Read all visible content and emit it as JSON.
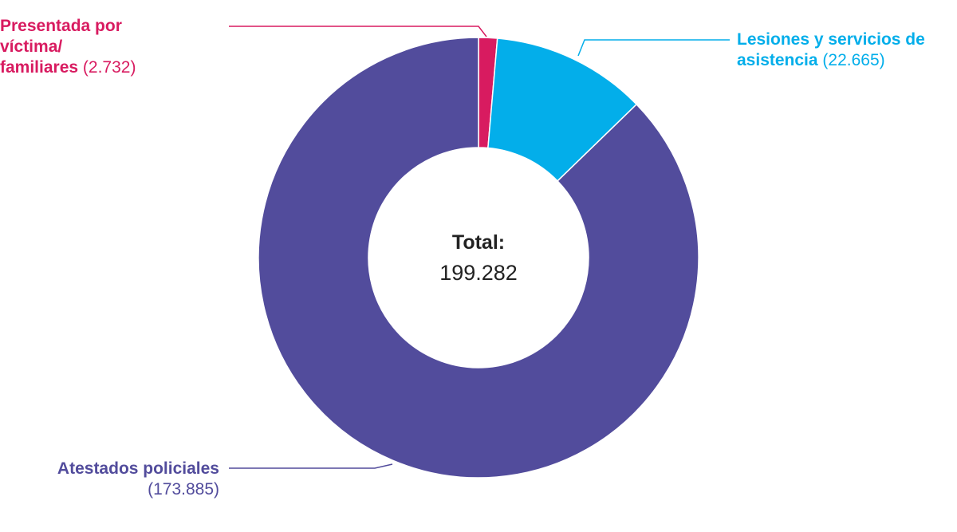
{
  "colors": {
    "victima": "#d81b60",
    "lesiones": "#03aeea",
    "atestados": "#524c9c",
    "text_dark": "#222222"
  },
  "chart_data": {
    "type": "pie",
    "donut": true,
    "title": "",
    "center": {
      "label": "Total:",
      "value": "199.282"
    },
    "slices": [
      {
        "id": "victima",
        "name": "Presentada por víctima/ familiares",
        "name_lines": [
          "Presentada por",
          "víctima/",
          "familiares"
        ],
        "value": 2732,
        "value_label": "(2.732)",
        "color": "#d81b60"
      },
      {
        "id": "lesiones",
        "name": "Lesiones y servicios de asistencia",
        "name_lines": [
          "Lesiones y servicios de",
          "asistencia"
        ],
        "value": 22665,
        "value_label": "(22.665)",
        "color": "#03aeea"
      },
      {
        "id": "atestados",
        "name": "Atestados policiales",
        "name_lines": [
          "Atestados policiales"
        ],
        "value": 173885,
        "value_label": "(173.885)",
        "color": "#524c9c"
      }
    ],
    "start_angle": "top",
    "direction": "clockwise"
  }
}
